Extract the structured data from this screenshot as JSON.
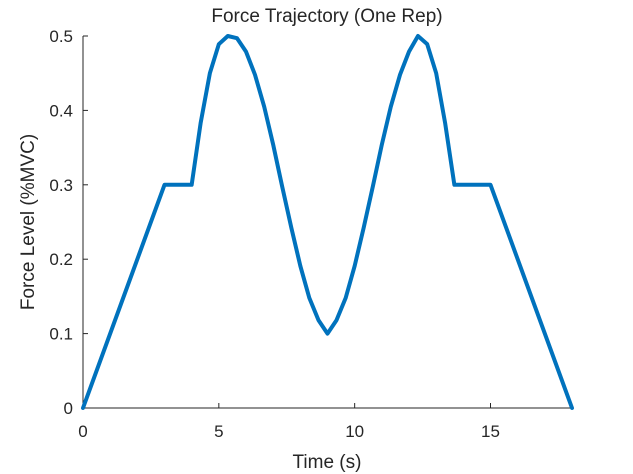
{
  "chart_data": {
    "type": "line",
    "title": "Force Trajectory (One Rep)",
    "xlabel": "Time (s)",
    "ylabel": "Force Level (%MVC)",
    "xlim": [
      0,
      18
    ],
    "ylim": [
      0,
      0.5
    ],
    "xticks": [
      0,
      5,
      10,
      15
    ],
    "xtick_labels": [
      "0",
      "5",
      "10",
      "15"
    ],
    "yticks": [
      0,
      0.1,
      0.2,
      0.3,
      0.4,
      0.5
    ],
    "ytick_labels": [
      "0",
      "0.1",
      "0.2",
      "0.3",
      "0.4",
      "0.5"
    ],
    "grid": false,
    "series": [
      {
        "color": "#0072BD",
        "x": [
          0,
          3,
          4,
          4.33,
          4.67,
          5.0,
          5.33,
          5.67,
          6.0,
          6.33,
          6.67,
          7.0,
          7.33,
          7.67,
          8.0,
          8.33,
          8.67,
          9.0,
          9.33,
          9.67,
          10.0,
          10.33,
          10.67,
          11.0,
          11.33,
          11.67,
          12.0,
          12.33,
          12.67,
          13.0,
          13.33,
          13.67,
          14.0,
          15,
          18
        ],
        "y": [
          0,
          0.3,
          0.3,
          0.383,
          0.45,
          0.489,
          0.5,
          0.497,
          0.479,
          0.448,
          0.405,
          0.354,
          0.298,
          0.242,
          0.191,
          0.148,
          0.118,
          0.1,
          0.118,
          0.148,
          0.191,
          0.242,
          0.298,
          0.354,
          0.405,
          0.448,
          0.479,
          0.5,
          0.489,
          0.45,
          0.383,
          0.3,
          0.3,
          0.3,
          0
        ]
      }
    ]
  }
}
